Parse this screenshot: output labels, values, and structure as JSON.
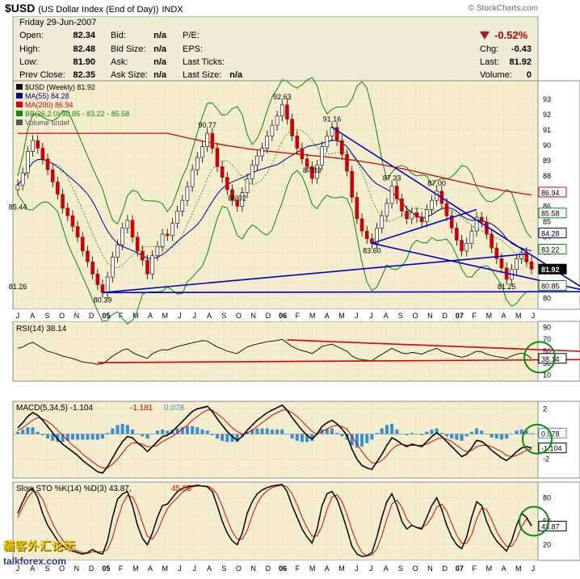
{
  "header": {
    "symbol": "$USD",
    "description": "(US Dollar Index (End of Day))",
    "exchange": "INDX",
    "brand": "© StockCharts.com",
    "date": "Friday  29-Jun-2007",
    "quote": [
      {
        "label": "Open:",
        "value": "82.34"
      },
      {
        "label": "High:",
        "value": "82.48"
      },
      {
        "label": "Low:",
        "value": "81.90"
      },
      {
        "label": "Prev Close:",
        "value": "82.35"
      }
    ],
    "bid": [
      {
        "label": "Bid:",
        "value": "n/a"
      },
      {
        "label": "Bid Size:",
        "value": "n/a"
      },
      {
        "label": "Ask:",
        "value": "n/a"
      },
      {
        "label": "Ask Size:",
        "value": "n/a"
      }
    ],
    "pe": [
      {
        "label": "P/E:",
        "value": ""
      },
      {
        "label": "EPS:",
        "value": ""
      },
      {
        "label": "Last Ticks:",
        "value": ""
      },
      {
        "label": "Last Size:",
        "value": "n/a"
      }
    ],
    "change_pct": "-0.52%",
    "change": [
      {
        "label": "Chg:",
        "value": "-0.43"
      },
      {
        "label": "Last:",
        "value": "81.92"
      },
      {
        "label": "Volume:",
        "value": "0"
      }
    ]
  },
  "chart_data": [
    {
      "type": "line",
      "legend": [
        "$USD (Weekly) 81.92",
        "MA(55) 84.28",
        "MA(200) 86.94",
        "BB(26,2.0) 80.85 - 83.22 - 85.58",
        "Volume undef"
      ],
      "ylim": [
        79,
        94
      ],
      "y_ticks": [
        80,
        81,
        82,
        83,
        84,
        85,
        86,
        87,
        88,
        89,
        90,
        91,
        92,
        93
      ],
      "x_months": [
        "J",
        "A",
        "S",
        "O",
        "N",
        "D",
        "05",
        "F",
        "M",
        "A",
        "M",
        "J",
        "J",
        "A",
        "S",
        "O",
        "N",
        "D",
        "06",
        "F",
        "M",
        "A",
        "M",
        "J",
        "J",
        "A",
        "S",
        "O",
        "N",
        "D",
        "07",
        "F",
        "M",
        "A",
        "M",
        "J"
      ],
      "price_close": [
        87.4,
        88.2,
        89.6,
        90.3,
        89.8,
        89.1,
        88.4,
        87.6,
        86.8,
        85.9,
        85.4,
        84.7,
        84.0,
        83.1,
        82.4,
        81.6,
        80.9,
        80.39,
        81.4,
        82.7,
        83.5,
        84.6,
        85.1,
        84.0,
        83.1,
        82.5,
        81.6,
        82.8,
        83.4,
        84.2,
        84.1,
        84.9,
        85.7,
        86.4,
        87.3,
        88.4,
        89.2,
        89.9,
        90.77,
        89.8,
        88.6,
        87.9,
        87.1,
        86.4,
        86.02,
        86.9,
        87.8,
        88.7,
        89.3,
        89.8,
        90.6,
        91.3,
        91.9,
        92.63,
        91.7,
        90.6,
        89.8,
        89.1,
        88.6,
        87.83,
        88.7,
        89.9,
        90.6,
        91.16,
        90.3,
        89.4,
        88.3,
        86.6,
        85.2,
        84.4,
        83.9,
        83.6,
        84.6,
        85.4,
        86.2,
        87.33,
        86.5,
        85.7,
        85.2,
        85.6,
        85.3,
        85.0,
        85.8,
        86.4,
        87.0,
        86.2,
        85.4,
        84.6,
        83.8,
        83.1,
        83.6,
        84.4,
        85.3,
        85.0,
        84.2,
        83.3,
        82.6,
        82.0,
        81.25,
        81.9,
        82.6,
        83.0,
        82.4,
        81.92
      ],
      "price_labels": [
        {
          "text": "87.00",
          "value": 87.0
        },
        {
          "text": "85.44",
          "value": 85.44
        },
        {
          "text": "81.26",
          "value": 81.26
        },
        {
          "text": "80.39",
          "value": 80.39
        },
        {
          "text": "90.77",
          "value": 90.77
        },
        {
          "text": "86.02",
          "value": 86.02
        },
        {
          "text": "92.63",
          "value": 92.63
        },
        {
          "text": "87.83",
          "value": 87.83
        },
        {
          "text": "91.16",
          "value": 91.16
        },
        {
          "text": "83.60",
          "value": 83.6
        },
        {
          "text": "87.33",
          "value": 87.33
        },
        {
          "text": "81.25",
          "value": 81.25
        }
      ],
      "right_values": [
        {
          "text": "86.94",
          "value": 86.94
        },
        {
          "text": "85.58",
          "value": 85.58
        },
        {
          "text": "84.28",
          "value": 84.28
        },
        {
          "text": "83.22",
          "value": 83.22
        },
        {
          "text": "81.92",
          "value": 81.92
        },
        {
          "text": "80.85",
          "value": 80.85
        }
      ],
      "colors": {
        "ma55": "#00008b",
        "ma200": "#dd0000",
        "bb": "#0a8a0a",
        "up": "#2a7a2a",
        "down": "#cc0000",
        "trend": "#0000cc"
      }
    },
    {
      "type": "line",
      "legend": "RSI(14) 38.14",
      "ylim": [
        0,
        100
      ],
      "y_ticks": [
        10,
        30,
        50,
        70,
        90
      ],
      "values": [
        55,
        57,
        62,
        65,
        60,
        55,
        50,
        48,
        45,
        42,
        40,
        38,
        35,
        32,
        31,
        30,
        28,
        29,
        35,
        42,
        47,
        52,
        54,
        48,
        44,
        41,
        38,
        46,
        50,
        53,
        52,
        55,
        58,
        60,
        62,
        64,
        66,
        68,
        67,
        62,
        57,
        54,
        50,
        48,
        46,
        52,
        57,
        60,
        62,
        64,
        66,
        67,
        68,
        70,
        64,
        58,
        54,
        51,
        49,
        46,
        52,
        58,
        60,
        62,
        58,
        54,
        50,
        42,
        38,
        36,
        35,
        34,
        40,
        45,
        50,
        55,
        51,
        47,
        46,
        48,
        47,
        45,
        49,
        52,
        55,
        50,
        47,
        45,
        42,
        40,
        42,
        46,
        50,
        49,
        45,
        43,
        41,
        40,
        38,
        42,
        45,
        47,
        44,
        38.14
      ],
      "right_value": "38.14"
    },
    {
      "type": "line",
      "legend": [
        "MACD(5,34,5) -1.104",
        "-1.181",
        "0.078"
      ],
      "ylim": [
        -3.5,
        2.5
      ],
      "y_ticks": [
        2,
        -2
      ],
      "macd": [
        0.5,
        0.9,
        1.4,
        1.7,
        1.5,
        1.1,
        0.6,
        0.1,
        -0.4,
        -0.8,
        -1.1,
        -1.4,
        -1.7,
        -2.1,
        -2.4,
        -2.7,
        -3.0,
        -3.1,
        -2.6,
        -1.9,
        -1.2,
        -0.6,
        -0.2,
        -0.3,
        -0.7,
        -1.0,
        -1.4,
        -1.0,
        -0.6,
        -0.2,
        -0.1,
        0.2,
        0.6,
        1.0,
        1.4,
        1.8,
        2.0,
        2.1,
        2.2,
        1.8,
        1.2,
        0.7,
        0.2,
        -0.2,
        -0.5,
        -0.2,
        0.3,
        0.7,
        1.1,
        1.4,
        1.7,
        1.9,
        2.1,
        2.3,
        1.9,
        1.3,
        0.8,
        0.3,
        -0.1,
        -0.4,
        0.0,
        0.6,
        0.9,
        1.1,
        0.8,
        0.4,
        -0.1,
        -1.2,
        -2.0,
        -2.5,
        -2.7,
        -2.8,
        -2.2,
        -1.6,
        -0.9,
        -0.3,
        -0.5,
        -0.8,
        -1.0,
        -0.8,
        -0.9,
        -1.0,
        -0.6,
        -0.2,
        0.1,
        -0.2,
        -0.6,
        -1.0,
        -1.4,
        -1.8,
        -1.6,
        -1.1,
        -0.5,
        -0.6,
        -0.9,
        -1.3,
        -1.6,
        -1.9,
        -2.1,
        -1.8,
        -1.4,
        -1.1,
        -1.0,
        -1.104
      ],
      "signal": [
        0.3,
        0.5,
        0.8,
        1.1,
        1.3,
        1.2,
        1.0,
        0.7,
        0.3,
        -0.1,
        -0.5,
        -0.9,
        -1.2,
        -1.6,
        -1.9,
        -2.2,
        -2.5,
        -2.7,
        -2.7,
        -2.4,
        -2.0,
        -1.5,
        -1.0,
        -0.7,
        -0.7,
        -0.8,
        -1.0,
        -1.0,
        -0.9,
        -0.6,
        -0.4,
        -0.2,
        0.1,
        0.4,
        0.7,
        1.1,
        1.4,
        1.7,
        1.9,
        1.9,
        1.6,
        1.3,
        0.9,
        0.5,
        0.2,
        0.0,
        0.1,
        0.3,
        0.6,
        0.9,
        1.2,
        1.5,
        1.7,
        1.9,
        1.9,
        1.7,
        1.4,
        1.0,
        0.6,
        0.2,
        0.0,
        0.2,
        0.4,
        0.6,
        0.7,
        0.6,
        0.4,
        -0.2,
        -0.8,
        -1.4,
        -1.9,
        -2.3,
        -2.3,
        -2.1,
        -1.7,
        -1.2,
        -0.9,
        -0.8,
        -0.9,
        -0.9,
        -0.9,
        -0.9,
        -0.8,
        -0.6,
        -0.4,
        -0.3,
        -0.4,
        -0.6,
        -0.9,
        -1.2,
        -1.4,
        -1.3,
        -1.0,
        -0.9,
        -0.9,
        -1.0,
        -1.2,
        -1.4,
        -1.7,
        -1.8,
        -1.7,
        -1.5,
        -1.3,
        -1.181
      ],
      "right_values": [
        "0.078",
        "-1.104"
      ]
    },
    {
      "type": "line",
      "legend": [
        "Slow STO %K(14) %D(3) 43.87,",
        "45.55"
      ],
      "ylim": [
        0,
        100
      ],
      "y_ticks": [
        20,
        50,
        80
      ],
      "k": [
        60,
        75,
        88,
        92,
        80,
        60,
        45,
        35,
        25,
        18,
        15,
        12,
        10,
        8,
        10,
        14,
        10,
        8,
        25,
        55,
        78,
        85,
        88,
        70,
        45,
        28,
        20,
        35,
        55,
        70,
        72,
        80,
        88,
        92,
        94,
        95,
        96,
        95,
        94,
        88,
        70,
        50,
        35,
        25,
        20,
        35,
        60,
        75,
        85,
        90,
        93,
        95,
        96,
        97,
        88,
        70,
        55,
        40,
        30,
        22,
        40,
        70,
        85,
        88,
        78,
        60,
        40,
        18,
        8,
        5,
        6,
        10,
        30,
        55,
        75,
        85,
        70,
        50,
        40,
        45,
        42,
        40,
        55,
        70,
        80,
        65,
        45,
        30,
        20,
        15,
        30,
        55,
        75,
        70,
        50,
        35,
        25,
        18,
        12,
        25,
        45,
        60,
        55,
        43.87
      ],
      "d": [
        55,
        68,
        80,
        88,
        87,
        78,
        62,
        47,
        35,
        26,
        19,
        15,
        12,
        10,
        9,
        11,
        11,
        11,
        14,
        29,
        52,
        72,
        83,
        81,
        68,
        48,
        31,
        27,
        37,
        53,
        66,
        74,
        80,
        87,
        91,
        94,
        95,
        95,
        95,
        92,
        84,
        69,
        52,
        37,
        27,
        27,
        38,
        57,
        73,
        83,
        89,
        93,
        95,
        96,
        94,
        85,
        71,
        55,
        42,
        31,
        31,
        44,
        65,
        81,
        84,
        75,
        59,
        39,
        22,
        10,
        6,
        7,
        15,
        32,
        53,
        72,
        77,
        68,
        53,
        45,
        42,
        42,
        46,
        55,
        68,
        72,
        63,
        47,
        32,
        22,
        22,
        33,
        53,
        67,
        65,
        52,
        37,
        26,
        18,
        18,
        27,
        43,
        53,
        45.55
      ],
      "right_value": "43.87"
    }
  ],
  "watermark": {
    "line1": "貓客外汇论坛",
    "line2": "talkforex.com"
  }
}
